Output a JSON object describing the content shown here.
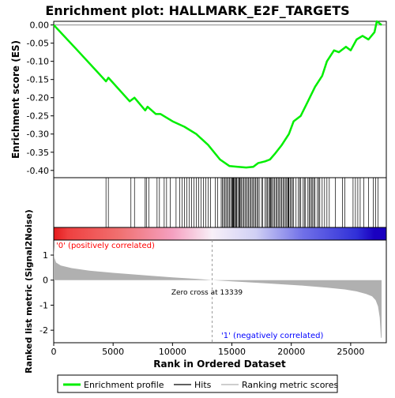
{
  "chart_data": {
    "type": "line",
    "title": "Enrichment plot: HALLMARK_E2F_TARGETS",
    "xlabel": "Rank in Ordered Dataset",
    "es_ylabel": "Enrichment score (ES)",
    "metric_ylabel": "Ranked list metric (Signal2Noise)",
    "xlim": [
      0,
      28000
    ],
    "x_ticks": [
      0,
      5000,
      10000,
      15000,
      20000,
      25000
    ],
    "x_tick_labels": [
      "0",
      "5000",
      "10000",
      "15000",
      "20000",
      "25000"
    ],
    "es_ylim": [
      -0.42,
      0.01
    ],
    "es_ticks": [
      0.0,
      -0.05,
      -0.1,
      -0.15,
      -0.2,
      -0.25,
      -0.3,
      -0.35,
      -0.4
    ],
    "es_tick_labels": [
      "0.00",
      "-0.05",
      "-0.10",
      "-0.15",
      "-0.20",
      "-0.25",
      "-0.30",
      "-0.35",
      "-0.40"
    ],
    "metric_ylim": [
      -2.5,
      1.6
    ],
    "metric_ticks": [
      1,
      0,
      -1,
      -2
    ],
    "metric_tick_labels": [
      "1",
      "0",
      "-1",
      "-2"
    ],
    "enrichment_profile": {
      "name": "Enrichment profile",
      "color": "#00ee00",
      "x": [
        0,
        2000,
        4400,
        4600,
        6400,
        6800,
        7700,
        7900,
        8600,
        9000,
        10000,
        11000,
        12000,
        13000,
        14000,
        14800,
        15500,
        16200,
        16800,
        17200,
        17800,
        18200,
        18600,
        19200,
        19800,
        20200,
        20800,
        21400,
        22000,
        22600,
        23000,
        23600,
        24000,
        24600,
        25000,
        25500,
        26000,
        26500,
        27000,
        27200,
        27600
      ],
      "y": [
        0.0,
        -0.07,
        -0.155,
        -0.145,
        -0.21,
        -0.2,
        -0.235,
        -0.225,
        -0.245,
        -0.245,
        -0.265,
        -0.28,
        -0.3,
        -0.33,
        -0.37,
        -0.388,
        -0.39,
        -0.392,
        -0.39,
        -0.38,
        -0.375,
        -0.37,
        -0.355,
        -0.33,
        -0.3,
        -0.265,
        -0.25,
        -0.21,
        -0.17,
        -0.14,
        -0.1,
        -0.07,
        -0.075,
        -0.06,
        -0.07,
        -0.04,
        -0.03,
        -0.04,
        -0.02,
        0.01,
        0.0
      ]
    },
    "hits": {
      "name": "Hits",
      "color": "#000000",
      "x": [
        4400,
        4600,
        6500,
        6800,
        7700,
        7800,
        8000,
        8700,
        8900,
        9300,
        9500,
        9800,
        10300,
        10600,
        10800,
        11000,
        11200,
        11400,
        11600,
        11800,
        12000,
        12200,
        12400,
        12600,
        12800,
        13000,
        13200,
        13600,
        13800,
        14100,
        14200,
        14300,
        14400,
        14500,
        14600,
        14700,
        14800,
        14900,
        15000,
        15050,
        15100,
        15150,
        15200,
        15300,
        15350,
        15400,
        15500,
        15600,
        15650,
        15700,
        15800,
        15900,
        16000,
        16100,
        16200,
        16300,
        16400,
        16500,
        16600,
        16700,
        16800,
        16900,
        17000,
        17100,
        17200,
        17300,
        17500,
        17600,
        17800,
        17900,
        18000,
        18100,
        18200,
        18250,
        18300,
        18400,
        18500,
        18600,
        18700,
        18800,
        18900,
        19000,
        19100,
        19200,
        19300,
        19400,
        19500,
        19600,
        19700,
        19750,
        19800,
        19900,
        20000,
        20100,
        20200,
        20400,
        20600,
        20700,
        20800,
        21000,
        21100,
        21200,
        21400,
        21500,
        21600,
        21700,
        21800,
        21900,
        22000,
        22200,
        22300,
        22400,
        22600,
        22800,
        23000,
        23200,
        23700,
        24300,
        24500,
        25200,
        25400,
        25600,
        25800,
        26100,
        26500,
        26900,
        27100,
        27300
      ]
    },
    "metric": {
      "name": "Ranking metric scores",
      "color": "#b0b0b0",
      "x": [
        0,
        50,
        200,
        600,
        1500,
        3000,
        5000,
        8000,
        10000,
        12000,
        13339,
        15000,
        18000,
        21000,
        23000,
        24500,
        25500,
        26300,
        26800,
        27100,
        27300,
        27450,
        27550,
        27600
      ],
      "y": [
        1.35,
        0.9,
        0.7,
        0.58,
        0.48,
        0.38,
        0.29,
        0.18,
        0.11,
        0.05,
        0.0,
        -0.05,
        -0.13,
        -0.22,
        -0.3,
        -0.37,
        -0.45,
        -0.55,
        -0.65,
        -0.8,
        -1.05,
        -1.5,
        -2.3,
        -2.3
      ]
    },
    "zero_cross_label": "Zero cross at 13339",
    "zero_cross_x": 13339,
    "positive_label": "'0' (positively correlated)",
    "negative_label": "'1' (negatively correlated)",
    "positive_color": "#ff0000",
    "negative_color": "#0000ff",
    "gradient": [
      {
        "x": 0,
        "color": "#e41a1c"
      },
      {
        "x": 1200,
        "color": "#ef4040"
      },
      {
        "x": 5500,
        "color": "#f07070"
      },
      {
        "x": 10000,
        "color": "#f5a0c0"
      },
      {
        "x": 13339,
        "color": "#f8f0f8"
      },
      {
        "x": 17000,
        "color": "#d0d0f4"
      },
      {
        "x": 21000,
        "color": "#7070e8"
      },
      {
        "x": 25500,
        "color": "#3030d8"
      },
      {
        "x": 27000,
        "color": "#1a00c0"
      },
      {
        "x": 27600,
        "color": "#1a00c0"
      }
    ],
    "legend": [
      {
        "label": "Enrichment profile",
        "color": "#00ee00"
      },
      {
        "label": "Hits",
        "color": "#000000"
      },
      {
        "label": "Ranking metric scores",
        "color": "#b0b0b0"
      }
    ]
  }
}
